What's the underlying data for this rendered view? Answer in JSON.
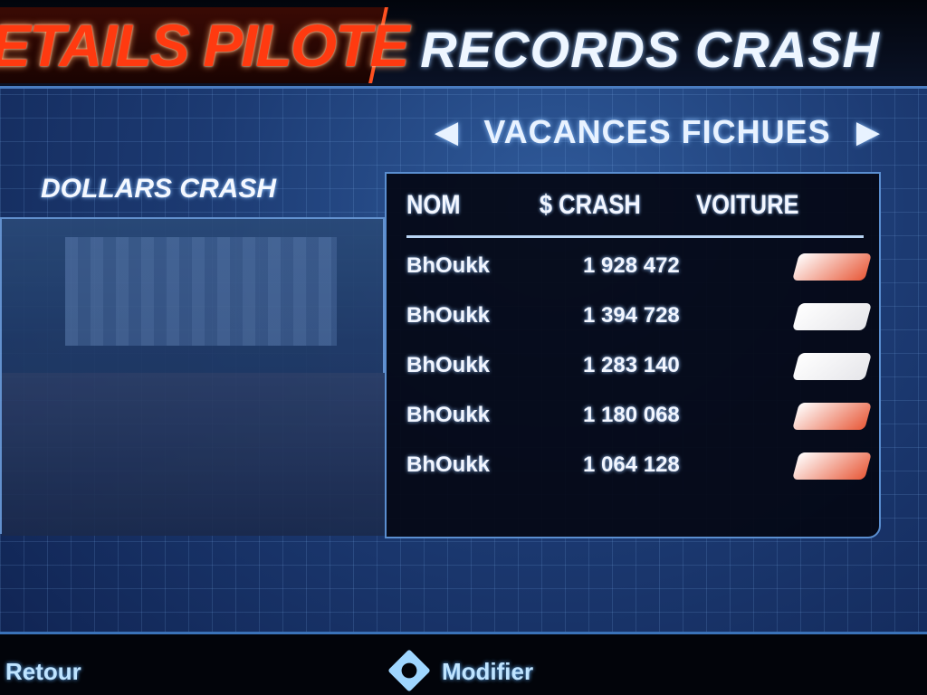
{
  "header": {
    "left_title": "ETAILS PILOTE",
    "right_title": "RECORDS CRASH"
  },
  "selector": {
    "prev_icon": "arrow-left-icon",
    "label": "VACANCES FICHUES",
    "next_icon": "arrow-right-icon",
    "prev": "◀",
    "next": "▶"
  },
  "section_label": "DOLLARS CRASH",
  "table": {
    "columns": [
      "NOM",
      "$ CRASH",
      "VOITURE"
    ],
    "rows": [
      {
        "name": "BhOukk",
        "crash": "1 928 472",
        "car_color": "#e85a3a"
      },
      {
        "name": "BhOukk",
        "crash": "1 394 728",
        "car_color": "#e6e6ea"
      },
      {
        "name": "BhOukk",
        "crash": "1 283 140",
        "car_color": "#e6e6ea"
      },
      {
        "name": "BhOukk",
        "crash": "1 180 068",
        "car_color": "#e85a3a"
      },
      {
        "name": "BhOukk",
        "crash": "1 064 128",
        "car_color": "#e85a3a"
      }
    ]
  },
  "footer": {
    "back": "Retour",
    "modify": "Modifier"
  }
}
